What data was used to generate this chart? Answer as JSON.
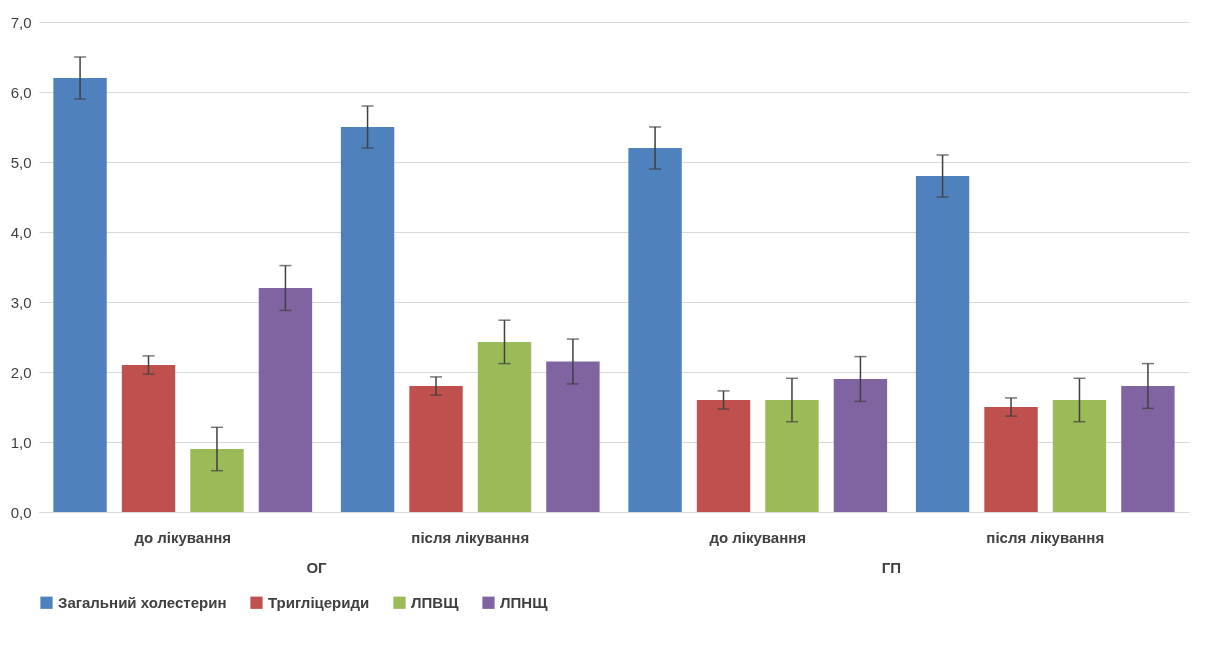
{
  "chart_data": {
    "type": "bar",
    "categories": [
      "до лікування",
      "після лікування",
      "до лікування",
      "після лікування"
    ],
    "annotations": [
      "ОГ",
      "ГП"
    ],
    "series": [
      {
        "name": "Загальний холестерин",
        "color": "#4f81bd",
        "values": [
          6.2,
          5.5,
          5.2,
          4.8
        ],
        "errors": [
          0.3,
          0.3,
          0.3,
          0.3
        ]
      },
      {
        "name": "Тригліцериди",
        "color": "#c0504d",
        "values": [
          2.1,
          1.8,
          1.6,
          1.5
        ],
        "errors": [
          0.13,
          0.13,
          0.13,
          0.13
        ]
      },
      {
        "name": "ЛПВЩ",
        "color": "#9bbb59",
        "values": [
          0.9,
          2.43,
          1.6,
          1.6
        ],
        "errors": [
          0.31,
          0.31,
          0.31,
          0.31
        ]
      },
      {
        "name": "ЛПНЩ",
        "color": "#8064a2",
        "values": [
          3.2,
          2.15,
          1.9,
          1.8
        ],
        "errors": [
          0.32,
          0.32,
          0.32,
          0.32
        ]
      }
    ],
    "ylim": [
      0,
      7
    ],
    "yticks": [
      {
        "value": 0,
        "label": "0,0"
      },
      {
        "value": 1,
        "label": "1,0"
      },
      {
        "value": 2,
        "label": "2,0"
      },
      {
        "value": 3,
        "label": "3,0"
      },
      {
        "value": 4,
        "label": "4,0"
      },
      {
        "value": 5,
        "label": "5,0"
      },
      {
        "value": 6,
        "label": "6,0"
      },
      {
        "value": 7,
        "label": "7,0"
      }
    ],
    "grid": "y",
    "legend": "bottom"
  }
}
